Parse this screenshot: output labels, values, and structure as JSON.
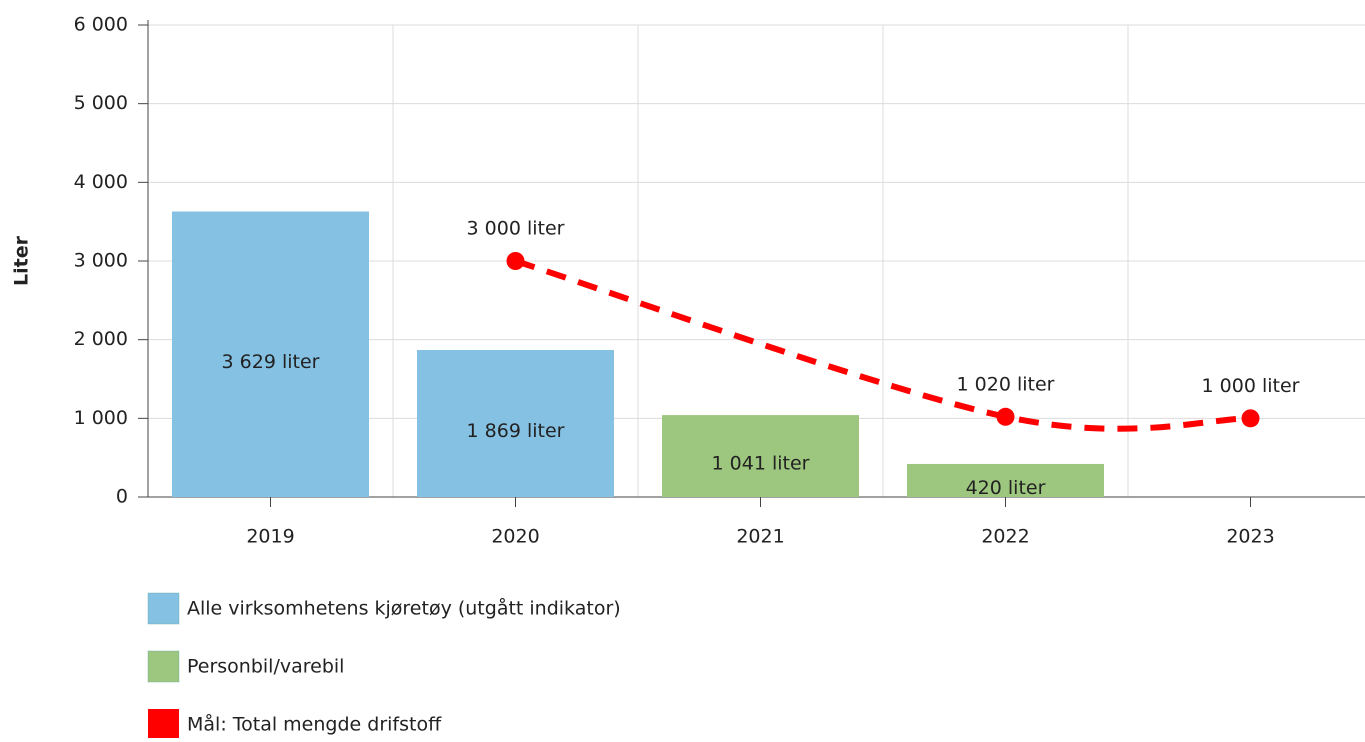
{
  "chart_data": {
    "type": "bar",
    "ylabel": "Liter",
    "categories": [
      "2019",
      "2020",
      "2021",
      "2022",
      "2023"
    ],
    "ylim": [
      0,
      6000
    ],
    "yticks": [
      0,
      {
        "value": 1000,
        "label": "1 000"
      },
      {
        "value": 2000,
        "label": "2 000"
      },
      {
        "value": 3000,
        "label": "3 000"
      },
      {
        "value": 4000,
        "label": "4 000"
      },
      {
        "value": 5000,
        "label": "5 000"
      },
      {
        "value": 6000,
        "label": "6 000"
      }
    ],
    "grid": true,
    "legend": "bottom",
    "series": [
      {
        "name": "Alle virksomhetens kjøretøy (utgått indikator)",
        "type": "bar",
        "color": "#85c1e3",
        "values": [
          3629,
          1869,
          null,
          null,
          null
        ],
        "value_labels": [
          "3 629 liter",
          "1 869 liter",
          null,
          null,
          null
        ]
      },
      {
        "name": "Personbil/varebil",
        "type": "bar",
        "color": "#9dc67e",
        "values": [
          null,
          null,
          1041,
          420,
          null
        ],
        "value_labels": [
          null,
          null,
          "1 041 liter",
          "420 liter",
          null
        ]
      },
      {
        "name": "Mål: Total mengde drifstoff",
        "type": "line",
        "color": "#ff0000",
        "dashed": true,
        "x": [
          "2020",
          "2022",
          "2023"
        ],
        "values": [
          3000,
          1020,
          1000
        ],
        "value_labels": [
          "3 000 liter",
          "1 020 liter",
          "1 000 liter"
        ]
      }
    ]
  }
}
